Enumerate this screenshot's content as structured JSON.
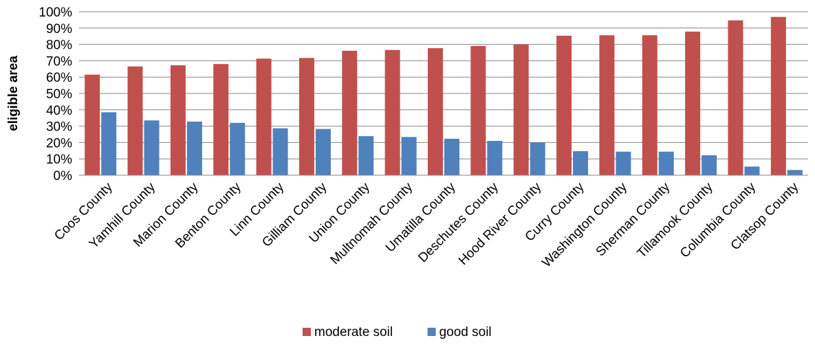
{
  "chart_data": {
    "type": "bar",
    "title": "",
    "xlabel": "",
    "ylabel": "eligible area",
    "ylim": [
      0,
      100
    ],
    "yticks": [
      "0%",
      "10%",
      "20%",
      "30%",
      "40%",
      "50%",
      "60%",
      "70%",
      "80%",
      "90%",
      "100%"
    ],
    "grid": true,
    "legend_position": "bottom",
    "categories": [
      "Coos County",
      "Yamhill County",
      "Marion County",
      "Benton County",
      "Linn County",
      "Gilliam County",
      "Union County",
      "Multnomah County",
      "Umatilla County",
      "Deschutes County",
      "Hood River County",
      "Curry County",
      "Washington County",
      "Sherman County",
      "Tillamook County",
      "Columbia County",
      "Clatsop County"
    ],
    "series": [
      {
        "name": "moderate soil",
        "color": "#c0504d",
        "values": [
          61.5,
          66.5,
          67.2,
          68,
          71.3,
          71.7,
          76.1,
          76.6,
          77.7,
          79,
          80,
          85.3,
          85.6,
          85.6,
          87.8,
          94.7,
          96.8
        ]
      },
      {
        "name": "good soil",
        "color": "#4f81bd",
        "values": [
          38.5,
          33.5,
          32.8,
          32,
          28.7,
          28.3,
          23.9,
          23.4,
          22.3,
          21,
          20,
          14.7,
          14.4,
          14.4,
          12.2,
          5.3,
          3.2
        ]
      }
    ]
  }
}
